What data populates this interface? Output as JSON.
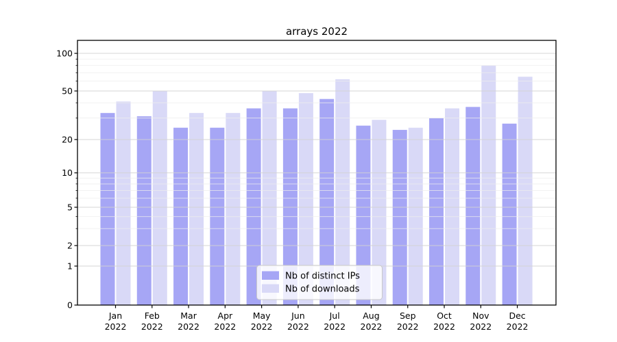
{
  "title": "arrays 2022",
  "colors": {
    "distinct_ips": "#a6a6f5",
    "downloads": "#d9d9f7",
    "grid_major": "#d2d2d2",
    "grid_minor": "#ededed",
    "axis": "#000000",
    "legend_border": "#c9c9c9",
    "background": "#ffffff"
  },
  "chart_data": {
    "type": "bar",
    "title": "arrays 2022",
    "categories": [
      "Jan 2022",
      "Feb 2022",
      "Mar 2022",
      "Apr 2022",
      "May 2022",
      "Jun 2022",
      "Jul 2022",
      "Aug 2022",
      "Sep 2022",
      "Oct 2022",
      "Nov 2022",
      "Dec 2022"
    ],
    "series": [
      {
        "name": "Nb of distinct IPs",
        "color_key": "distinct_ips",
        "values": [
          33,
          31,
          25,
          25,
          36,
          36,
          43,
          26,
          24,
          30,
          37,
          27
        ]
      },
      {
        "name": "Nb of downloads",
        "color_key": "downloads",
        "values": [
          41,
          50,
          33,
          33,
          50,
          48,
          62,
          29,
          25,
          36,
          80,
          65
        ]
      }
    ],
    "yscale": "symlog",
    "yticks": [
      0,
      1,
      2,
      5,
      10,
      20,
      50,
      100
    ],
    "yticks_minor": [
      3,
      4,
      6,
      7,
      8,
      9,
      30,
      40,
      60,
      70,
      80,
      90
    ],
    "ylim": [
      0,
      130
    ],
    "xlabel": "",
    "ylabel": "",
    "grid": true,
    "legend_position": "lower center"
  }
}
